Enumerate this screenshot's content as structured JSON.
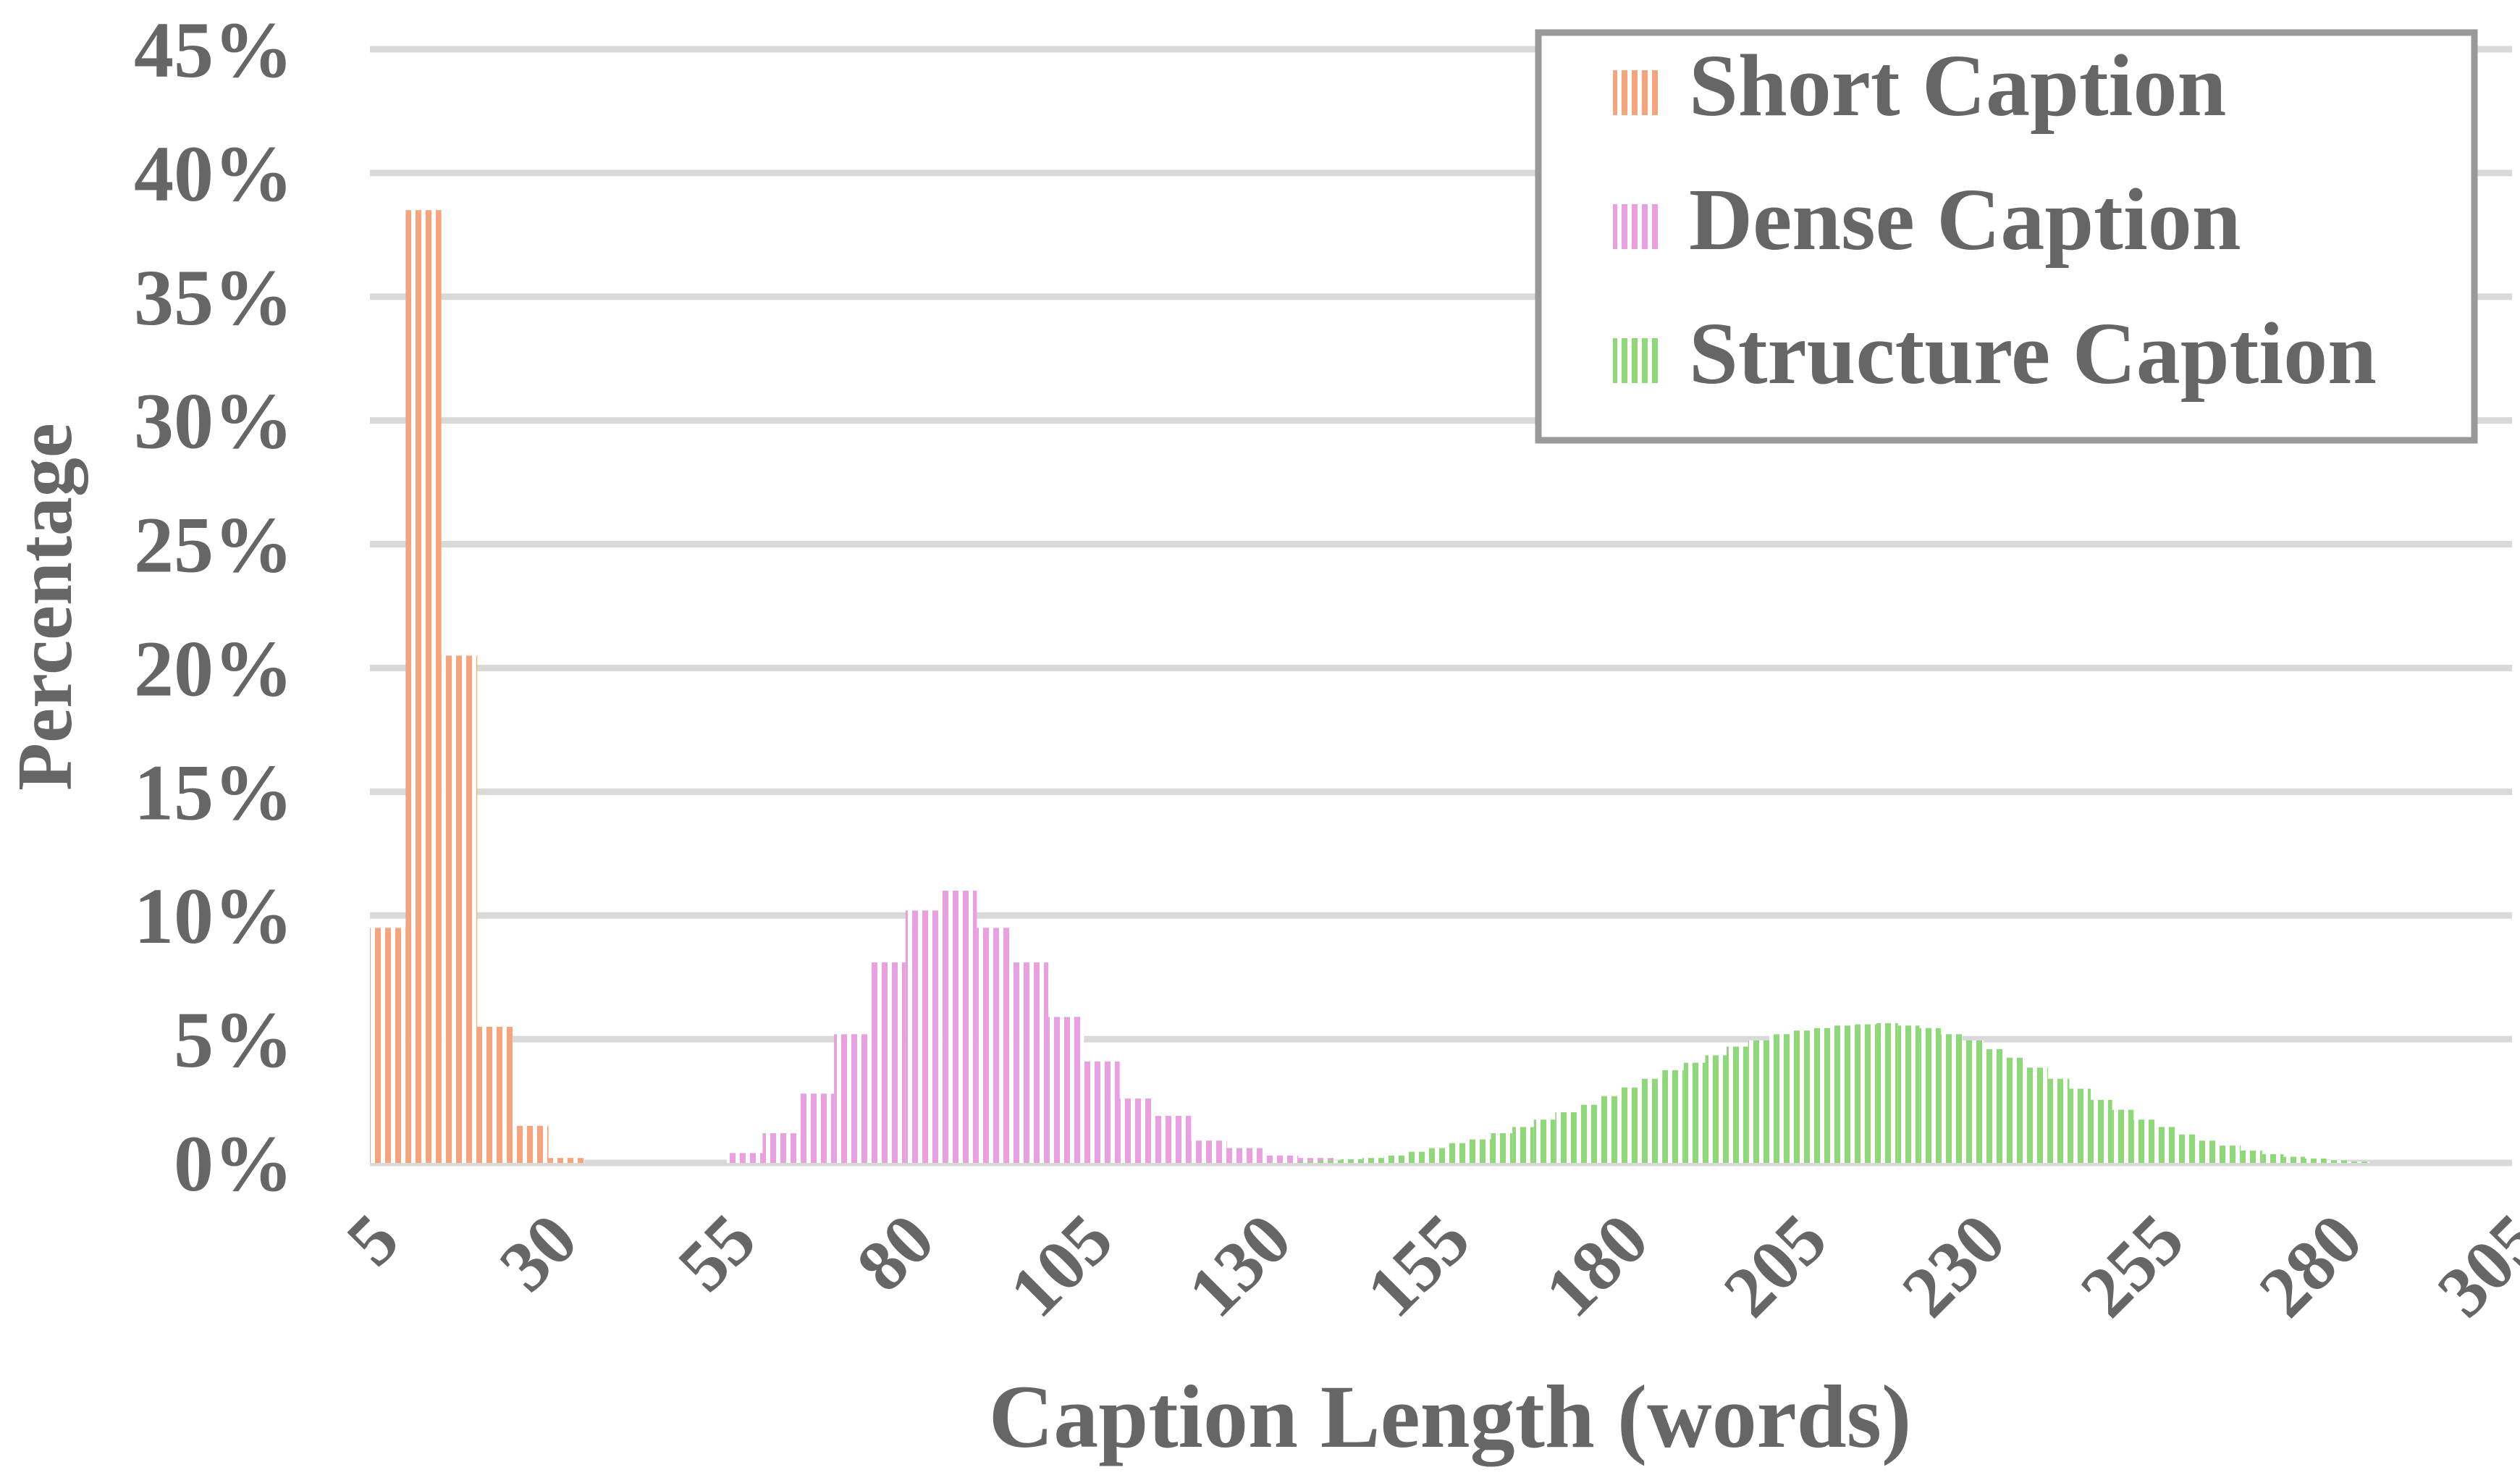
{
  "chart_data": {
    "type": "bar",
    "title": "",
    "xlabel": "Caption Length (words)",
    "ylabel": "Percentage",
    "xlim": [
      5,
      305
    ],
    "ylim": [
      0,
      45
    ],
    "grid": true,
    "legend_position": "top-right",
    "x_ticks": [
      "5",
      "30",
      "55",
      "80",
      "105",
      "130",
      "155",
      "180",
      "205",
      "230",
      "255",
      "280",
      "305"
    ],
    "y_ticks": [
      "0%",
      "5%",
      "10%",
      "15%",
      "20%",
      "25%",
      "30%",
      "35%",
      "40%",
      "45%"
    ],
    "series": [
      {
        "name": "Short Caption",
        "color": "#f4a57e",
        "bin_width": 5,
        "x": [
          5,
          10,
          15,
          20,
          25,
          30
        ],
        "values": [
          9.5,
          38.5,
          20.5,
          5.5,
          1.5,
          0.2
        ]
      },
      {
        "name": "Dense Caption",
        "color": "#e8a0e0",
        "bin_width": 5,
        "x": [
          55,
          60,
          65,
          70,
          75,
          80,
          85,
          90,
          95,
          100,
          105,
          110,
          115,
          120,
          125,
          130,
          135
        ],
        "values": [
          0.4,
          1.2,
          2.8,
          5.2,
          8.1,
          10.2,
          11.0,
          9.5,
          8.1,
          5.9,
          4.1,
          2.6,
          1.9,
          0.9,
          0.6,
          0.3,
          0.2
        ]
      },
      {
        "name": "Structure Caption",
        "color": "#8fd87a",
        "bin_width": 3,
        "x": [
          135,
          138,
          141,
          144,
          147,
          150,
          153,
          156,
          159,
          162,
          165,
          168,
          171,
          174,
          177,
          180,
          183,
          186,
          189,
          192,
          195,
          198,
          201,
          204,
          207,
          210,
          213,
          216,
          219,
          222,
          225,
          228,
          231,
          234,
          237,
          240,
          243,
          246,
          249,
          252,
          255,
          258,
          261,
          264,
          267,
          270,
          273,
          276,
          279,
          282
        ],
        "values": [
          0.05,
          0.1,
          0.15,
          0.2,
          0.3,
          0.45,
          0.6,
          0.8,
          0.95,
          1.2,
          1.45,
          1.75,
          2.05,
          2.35,
          2.7,
          3.05,
          3.4,
          3.75,
          4.05,
          4.35,
          4.7,
          4.95,
          5.2,
          5.35,
          5.45,
          5.55,
          5.6,
          5.65,
          5.55,
          5.45,
          5.2,
          4.95,
          4.6,
          4.25,
          3.85,
          3.4,
          3.0,
          2.55,
          2.15,
          1.75,
          1.45,
          1.15,
          0.9,
          0.7,
          0.5,
          0.35,
          0.25,
          0.18,
          0.1,
          0.05
        ]
      }
    ]
  }
}
